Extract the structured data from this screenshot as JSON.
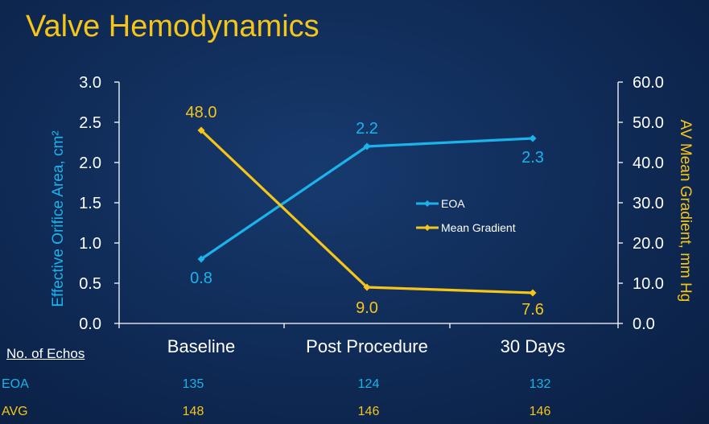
{
  "title": "Valve Hemodynamics",
  "chart_data": {
    "type": "line",
    "categories": [
      "Baseline",
      "Post Procedure",
      "30 Days"
    ],
    "series": [
      {
        "name": "EOA",
        "axis": "left",
        "color": "#1ab3ea",
        "values": [
          0.8,
          2.2,
          2.3
        ],
        "labels": [
          "0.8",
          "2.2",
          "2.3"
        ]
      },
      {
        "name": "Mean Gradient",
        "axis": "right",
        "color": "#f5c518",
        "values": [
          48.0,
          9.0,
          7.6
        ],
        "labels": [
          "48.0",
          "9.0",
          "7.6"
        ]
      }
    ],
    "y_left": {
      "label": "Effective Orifice Area, cm²",
      "range": [
        0,
        3.0
      ],
      "ticks": [
        "0.0",
        "0.5",
        "1.0",
        "1.5",
        "2.0",
        "2.5",
        "3.0"
      ]
    },
    "y_right": {
      "label": "AV Mean Gradient, mm Hg",
      "range": [
        0,
        60.0
      ],
      "ticks": [
        "0.0",
        "10.0",
        "20.0",
        "30.0",
        "40.0",
        "50.0",
        "60.0"
      ]
    },
    "legend_position": "center-right",
    "grid": false
  },
  "table": {
    "header": "No. of Echos",
    "rows": [
      {
        "label": "EOA",
        "color": "#1ab3ea",
        "values": [
          "135",
          "124",
          "132"
        ]
      },
      {
        "label": "AVG",
        "color": "#f5c518",
        "values": [
          "148",
          "146",
          "146"
        ]
      }
    ]
  },
  "colors": {
    "background": "#0f2a55",
    "title": "#f5c518",
    "axis": "#ffffff",
    "eoa": "#1ab3ea",
    "gradient": "#f5c518"
  }
}
